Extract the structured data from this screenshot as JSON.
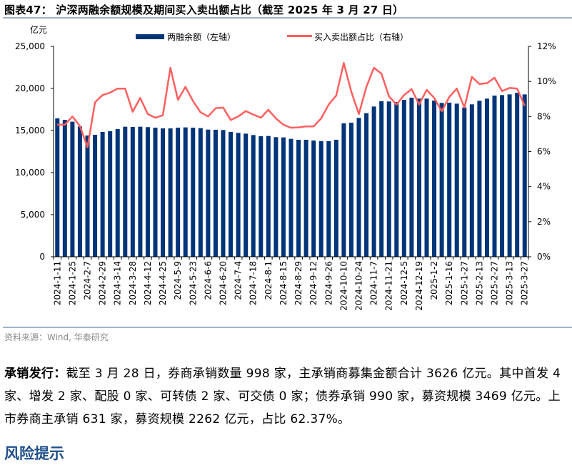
{
  "title": "图表47：  沪深两融余额规模及期间买入卖出额占比（截至 2025 年 3 月 27 日）",
  "source": "资料来源：Wind, 华泰研究",
  "paragraph": {
    "lead": "承销发行：",
    "body": "截至 3 月 28 日，券商承销数量 998 家，主承销商募集金额合计 3626 亿元。其中首发 4 家、增发 2 家、配股 0 家、可转债 2 家、可交债 0 家；债券承销 990 家，募资规模 3469 亿元。上市券商主承销 631 家，募资规模 2262 亿元，占比 62.37%。"
  },
  "section_heading": "风险提示",
  "chart_data": {
    "type": "bar+line",
    "ylabel_left": "亿元",
    "ylim_left": [
      0,
      25000
    ],
    "yticks_left": [
      "0",
      "5,000",
      "10,000",
      "15,000",
      "20,000",
      "25,000"
    ],
    "ylim_right": [
      0,
      12
    ],
    "yticks_right": [
      "0%",
      "2%",
      "4%",
      "6%",
      "8%",
      "10%",
      "12%"
    ],
    "x_tick_labels": [
      "2024-1-11",
      "2024-1-25",
      "2024-2-7",
      "2024-2-29",
      "2024-3-14",
      "2024-3-28",
      "2024-4-12",
      "2024-4-25",
      "2024-5-9",
      "2024-5-23",
      "2024-6-6",
      "2024-6-20",
      "2024-7-4",
      "2024-7-18",
      "2024-8-1",
      "2024-8-15",
      "2024-8-29",
      "2024-9-12",
      "2024-9-26",
      "2024-10-10",
      "2024-10-24",
      "2024-11-7",
      "2024-11-21",
      "2024-12-5",
      "2024-12-19",
      "2025-1-2",
      "2025-1-16",
      "2025-1-27",
      "2025-2-13",
      "2025-2-27",
      "2025-3-13",
      "2025-3-27"
    ],
    "series": [
      {
        "name": "两融余额（左轴）",
        "type": "bar",
        "axis": "left",
        "color": "#003478",
        "values": [
          16440,
          16270,
          16050,
          15480,
          14410,
          14490,
          14830,
          14920,
          15170,
          15450,
          15420,
          15450,
          15400,
          15340,
          15250,
          15250,
          15340,
          15370,
          15340,
          15280,
          15110,
          15090,
          15060,
          14830,
          14720,
          14630,
          14460,
          14320,
          14350,
          14210,
          14180,
          14010,
          13900,
          13900,
          13810,
          13730,
          13730,
          13900,
          15850,
          15930,
          16500,
          17060,
          17850,
          18480,
          18450,
          18390,
          18640,
          18900,
          18790,
          18790,
          18560,
          18280,
          18310,
          18190,
          17740,
          18110,
          18530,
          18790,
          19150,
          19210,
          19290,
          19490,
          19290
        ]
      },
      {
        "name": "买入卖出额占比（右轴）",
        "type": "line",
        "axis": "right",
        "color": "#ff5f5f",
        "values": [
          7.53,
          7.53,
          8.0,
          7.46,
          6.24,
          8.81,
          9.22,
          9.36,
          9.59,
          9.59,
          8.27,
          9.06,
          8.14,
          7.93,
          8.07,
          10.78,
          8.95,
          9.69,
          8.88,
          8.24,
          8.0,
          8.47,
          8.51,
          7.8,
          8.0,
          8.31,
          8.11,
          7.93,
          8.38,
          7.89,
          7.53,
          7.36,
          7.38,
          7.43,
          7.43,
          7.89,
          8.68,
          9.19,
          11.05,
          9.42,
          8.14,
          9.69,
          10.78,
          10.44,
          9.15,
          8.68,
          9.22,
          9.56,
          8.68,
          9.52,
          9.06,
          8.3,
          9.11,
          9.59,
          8.51,
          10.26,
          9.85,
          9.9,
          10.21,
          9.45,
          9.63,
          9.59,
          8.61
        ]
      }
    ],
    "legend_position": "top",
    "grid": false
  }
}
